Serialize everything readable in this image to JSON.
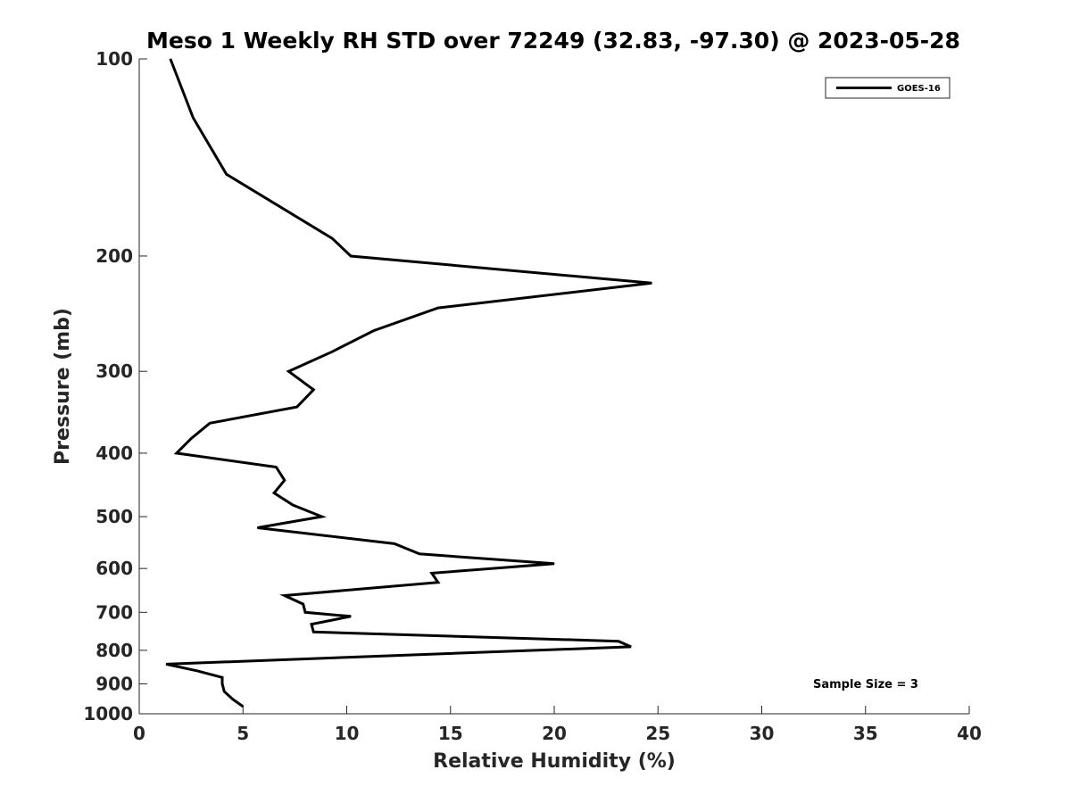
{
  "chart_data": {
    "type": "line",
    "title": "Meso 1 Weekly RH STD over 72249 (32.83, -97.30) @ 2023-05-28",
    "xlabel": "Relative Humidity (%)",
    "ylabel": "Pressure (mb)",
    "xlim": [
      0,
      40
    ],
    "ylim": [
      100,
      1000
    ],
    "y_scale": "log",
    "y_reversed": true,
    "grid": false,
    "x_ticks": [
      "0",
      "5",
      "10",
      "15",
      "20",
      "25",
      "30",
      "35",
      "40"
    ],
    "y_ticks": [
      "100",
      "200",
      "300",
      "400",
      "500",
      "600",
      "700",
      "800",
      "900",
      "1000"
    ],
    "legend": {
      "position": "top-right",
      "entries": [
        "GOES-16"
      ]
    },
    "annotation": "Sample Size = 3",
    "series": [
      {
        "name": "GOES-16",
        "color": "#000000",
        "x": [
          1.5,
          2.6,
          4.2,
          9.3,
          10.2,
          24.7,
          14.4,
          11.3,
          9.3,
          7.2,
          8.4,
          7.6,
          3.4,
          2.5,
          1.8,
          6.6,
          7.0,
          6.5,
          7.4,
          8.8,
          5.7,
          12.3,
          13.5,
          20.0,
          14.1,
          14.4,
          7.0,
          7.9,
          8.0,
          10.2,
          8.3,
          8.4,
          23.1,
          23.7,
          10.0,
          1.3,
          2.8,
          4.0,
          4.0,
          4.1,
          4.5,
          5.0
        ],
        "y": [
          100,
          123,
          150,
          188,
          200,
          220,
          240,
          260,
          280,
          300,
          320,
          340,
          360,
          380,
          400,
          420,
          440,
          460,
          480,
          500,
          520,
          550,
          570,
          590,
          610,
          630,
          660,
          680,
          700,
          710,
          730,
          750,
          775,
          790,
          820,
          840,
          860,
          880,
          900,
          925,
          950,
          975
        ]
      }
    ]
  }
}
